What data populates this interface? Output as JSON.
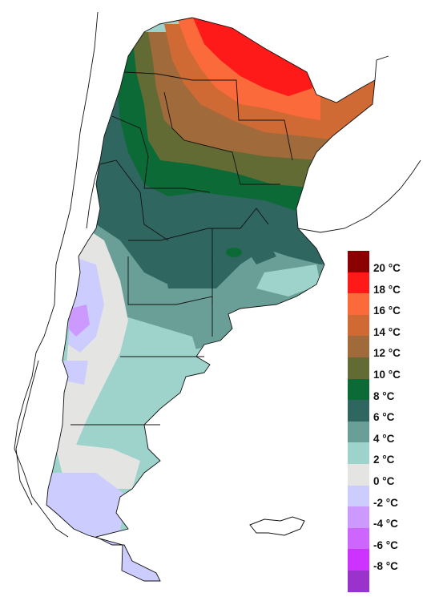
{
  "legend": {
    "entries": [
      {
        "label": "20 °C",
        "color": "#8b0000"
      },
      {
        "label": "18 °C",
        "color": "#ff1a1a"
      },
      {
        "label": "16 °C",
        "color": "#fb6a3a"
      },
      {
        "label": "14 °C",
        "color": "#cf6a35"
      },
      {
        "label": "12 °C",
        "color": "#a06a3a"
      },
      {
        "label": "10 °C",
        "color": "#636b35"
      },
      {
        "label": "8 °C",
        "color": "#0b6a35"
      },
      {
        "label": "6 °C",
        "color": "#2f6660"
      },
      {
        "label": "4 °C",
        "color": "#6a9f98"
      },
      {
        "label": "2 °C",
        "color": "#9ed3cc"
      },
      {
        "label": "0 °C",
        "color": "#e4e4e2"
      },
      {
        "label": "-2 °C",
        "color": "#ccccff"
      },
      {
        "label": "-4 °C",
        "color": "#cc99ff"
      },
      {
        "label": "-6 °C",
        "color": "#cc66ff"
      },
      {
        "label": "-8 °C",
        "color": "#cc33ff"
      },
      {
        "label": "",
        "color": "#9933cc"
      }
    ]
  }
}
